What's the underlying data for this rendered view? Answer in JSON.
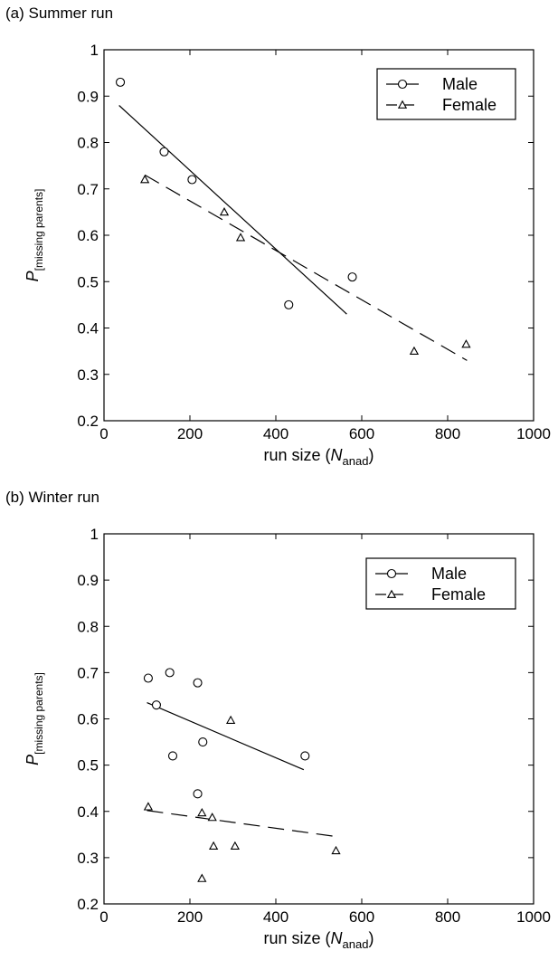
{
  "chart_data": [
    {
      "type": "scatter",
      "panel_label": "(a) Summer run",
      "xlabel": {
        "prefix": "run size (",
        "var": "N",
        "sub": "anad",
        "suffix": ")"
      },
      "ylabel": {
        "var": "P",
        "sub": "[missing parents]"
      },
      "xlim": [
        0,
        1000
      ],
      "ylim": [
        0.2,
        1
      ],
      "xticks": [
        "0",
        "200",
        "400",
        "600",
        "800",
        "1000"
      ],
      "yticks": [
        "0.2",
        "0.3",
        "0.4",
        "0.5",
        "0.6",
        "0.7",
        "0.8",
        "0.9",
        "1"
      ],
      "legend_position": "top-right",
      "series": [
        {
          "name": "Male",
          "marker": "circle",
          "line_style": "solid",
          "points": [
            [
              38,
              0.93
            ],
            [
              140,
              0.78
            ],
            [
              205,
              0.72
            ],
            [
              430,
              0.45
            ],
            [
              578,
              0.51
            ]
          ],
          "fit": [
            [
              35,
              0.88
            ],
            [
              565,
              0.43
            ]
          ]
        },
        {
          "name": "Female",
          "marker": "triangle",
          "line_style": "dashed",
          "points": [
            [
              95,
              0.72
            ],
            [
              280,
              0.65
            ],
            [
              318,
              0.595
            ],
            [
              722,
              0.35
            ],
            [
              843,
              0.365
            ]
          ],
          "fit": [
            [
              95,
              0.73
            ],
            [
              845,
              0.33
            ]
          ]
        }
      ]
    },
    {
      "type": "scatter",
      "panel_label": "(b) Winter run",
      "xlabel": {
        "prefix": "run size (",
        "var": "N",
        "sub": "anad",
        "suffix": ")"
      },
      "ylabel": {
        "var": "P",
        "sub": "[missing parents]"
      },
      "xlim": [
        0,
        1000
      ],
      "ylim": [
        0.2,
        1
      ],
      "xticks": [
        "0",
        "200",
        "400",
        "600",
        "800",
        "1000"
      ],
      "yticks": [
        "0.2",
        "0.3",
        "0.4",
        "0.5",
        "0.6",
        "0.7",
        "0.8",
        "0.9",
        "1"
      ],
      "legend_position": "top-right",
      "series": [
        {
          "name": "Male",
          "marker": "circle",
          "line_style": "solid",
          "points": [
            [
              103,
              0.688
            ],
            [
              122,
              0.63
            ],
            [
              153,
              0.7
            ],
            [
              160,
              0.52
            ],
            [
              218,
              0.678
            ],
            [
              218,
              0.438
            ],
            [
              230,
              0.55
            ],
            [
              468,
              0.52
            ]
          ],
          "fit": [
            [
              100,
              0.635
            ],
            [
              465,
              0.49
            ]
          ]
        },
        {
          "name": "Female",
          "marker": "triangle",
          "line_style": "dashed",
          "points": [
            [
              103,
              0.41
            ],
            [
              228,
              0.397
            ],
            [
              228,
              0.255
            ],
            [
              252,
              0.387
            ],
            [
              255,
              0.325
            ],
            [
              295,
              0.597
            ],
            [
              305,
              0.325
            ],
            [
              540,
              0.315
            ]
          ],
          "fit": [
            [
              100,
              0.402
            ],
            [
              545,
              0.345
            ]
          ]
        }
      ]
    }
  ]
}
